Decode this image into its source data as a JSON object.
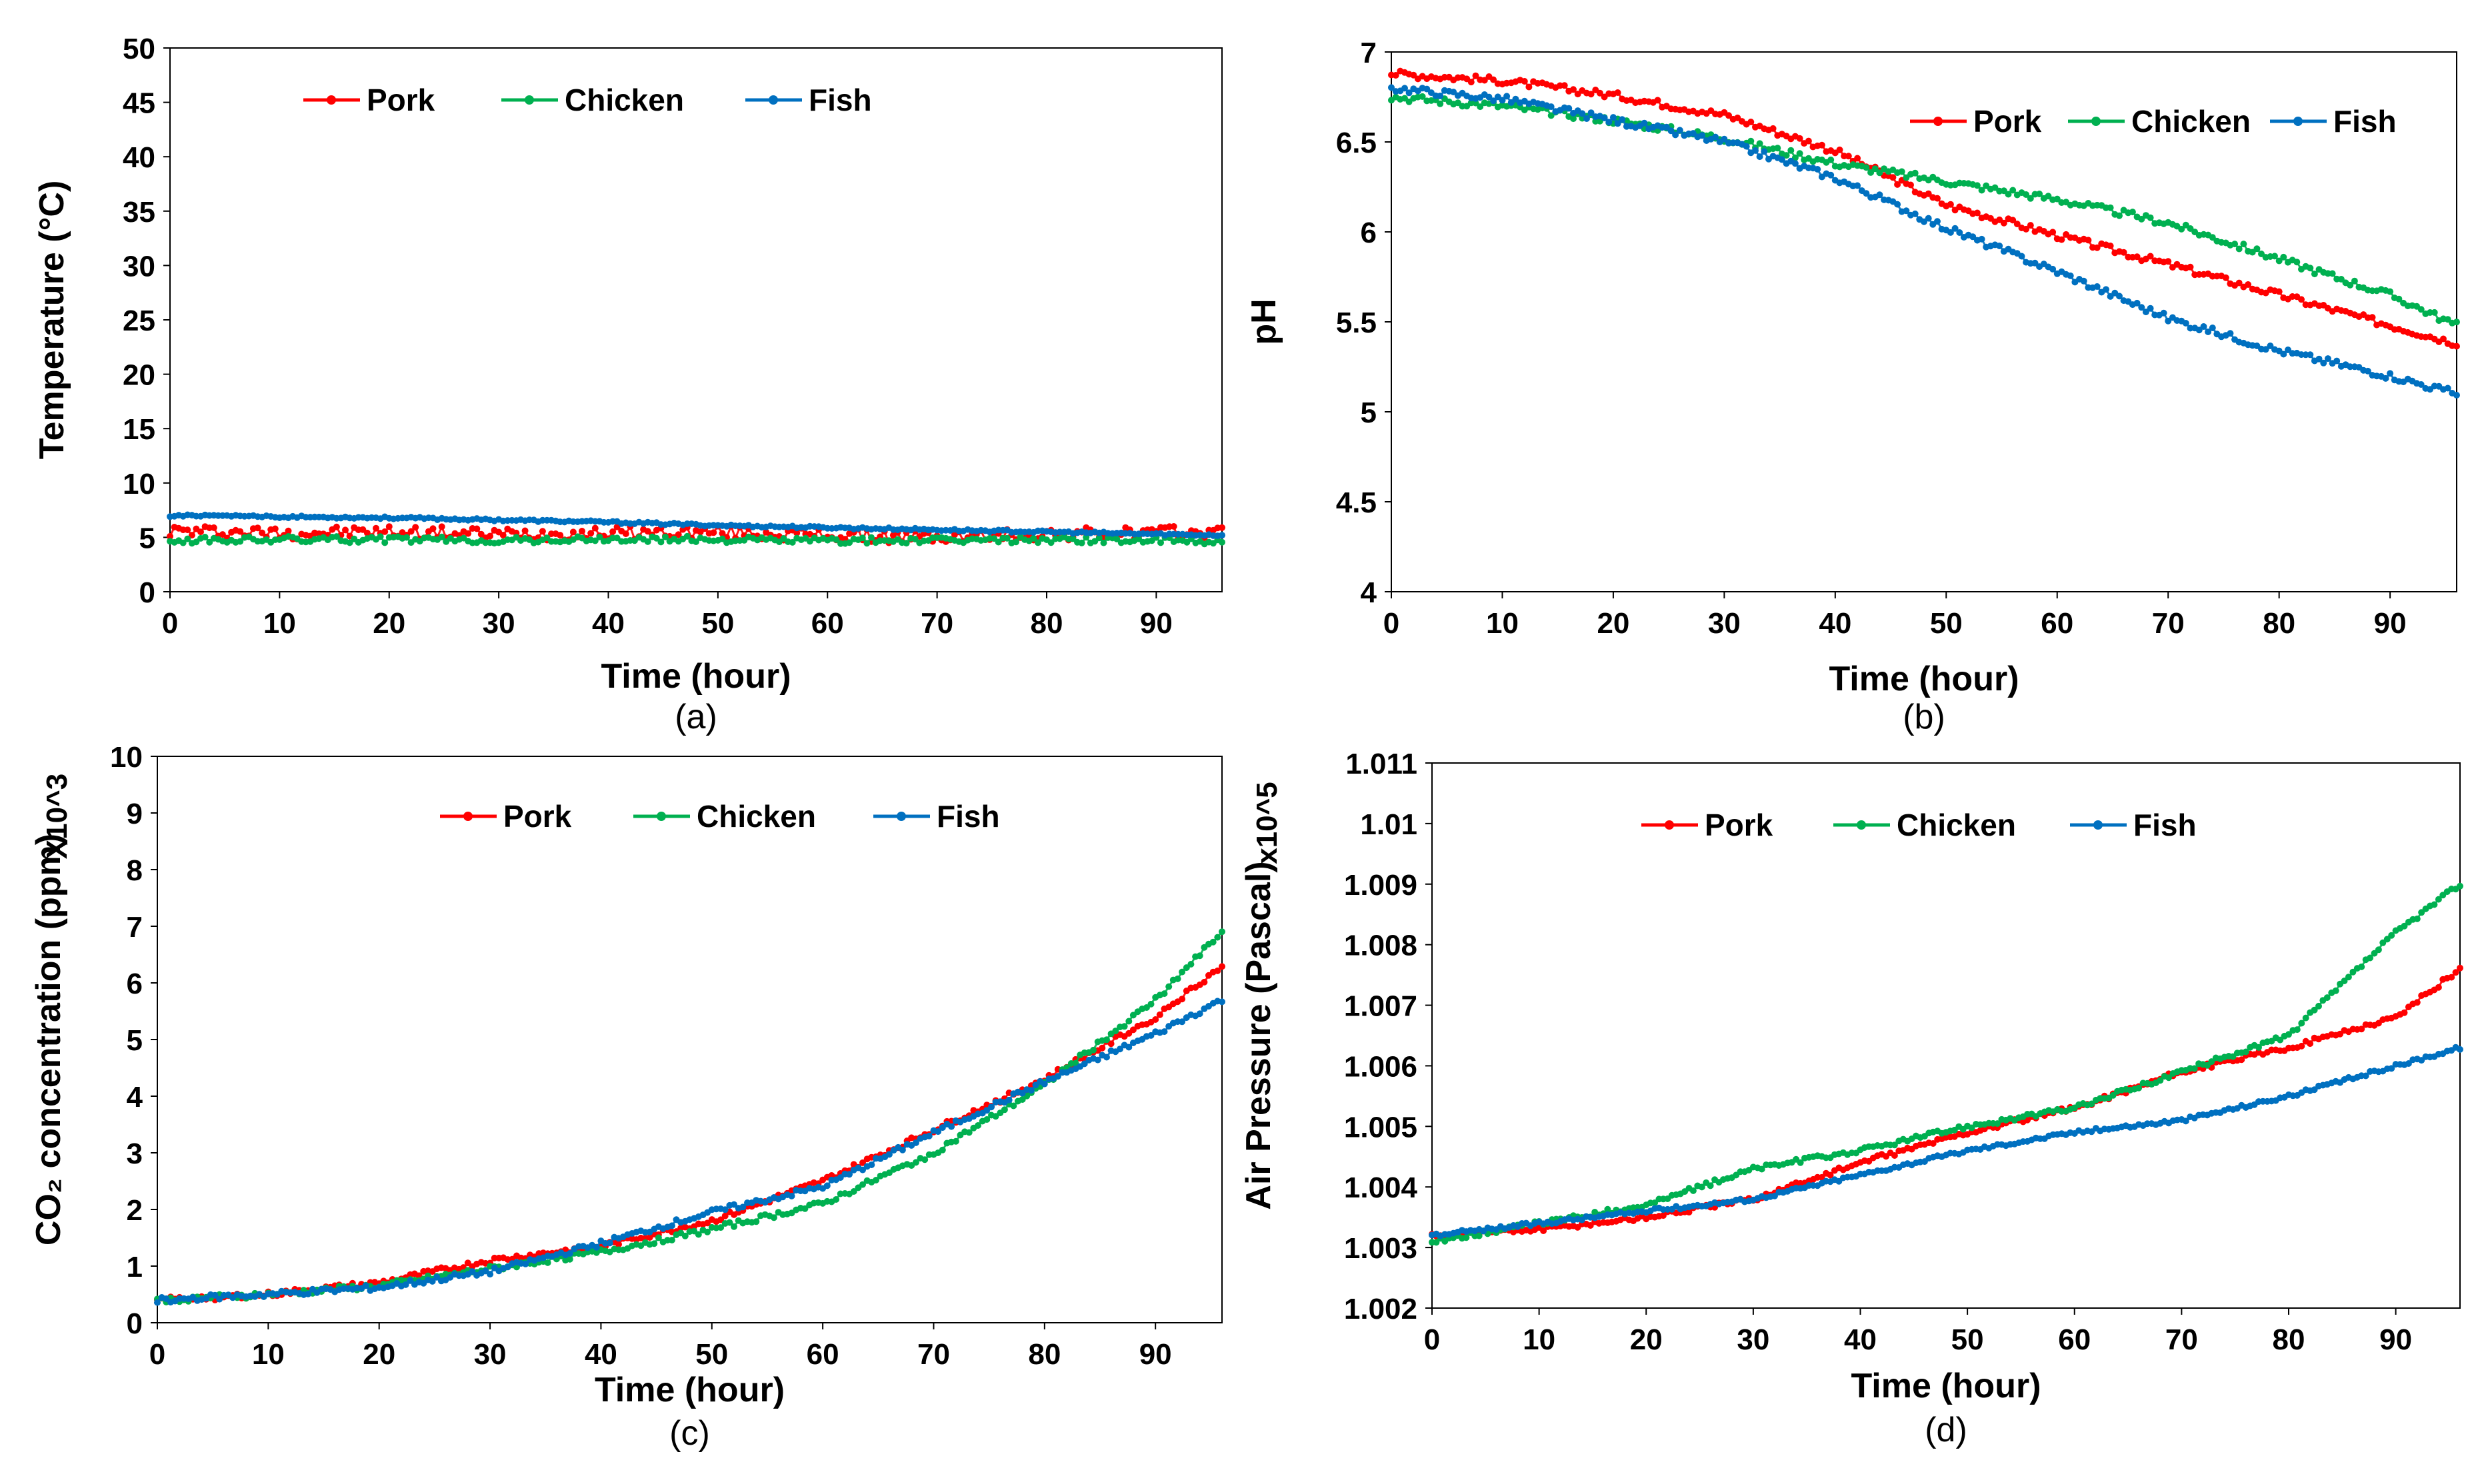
{
  "chart_data": [
    {
      "id": "a",
      "type": "line",
      "panel_label": "(a)",
      "xlabel": "Time (hour)",
      "ylabel": "Temperature (°C)",
      "multiplier": "",
      "xlim": [
        0,
        96
      ],
      "ylim": [
        0,
        50
      ],
      "xticks": [
        0,
        10,
        20,
        30,
        40,
        50,
        60,
        70,
        80,
        90
      ],
      "yticks": [
        0,
        5,
        10,
        15,
        20,
        25,
        30,
        35,
        40,
        45,
        50
      ],
      "ytick_labels": [
        "0",
        "5",
        "10",
        "15",
        "20",
        "25",
        "30",
        "35",
        "40",
        "45",
        "50"
      ],
      "legend": [
        "Pork",
        "Chicken",
        "Fish"
      ],
      "series": [
        {
          "name": "Pork",
          "color": "#ff0000",
          "x": [
            0,
            10,
            20,
            30,
            40,
            50,
            60,
            70,
            80,
            90,
            96
          ],
          "y": [
            5.6,
            5.4,
            5.5,
            5.3,
            5.4,
            5.5,
            5.2,
            5.0,
            5.3,
            5.4,
            5.5
          ],
          "noise": 0.6
        },
        {
          "name": "Chicken",
          "color": "#00b050",
          "x": [
            0,
            10,
            20,
            30,
            40,
            50,
            60,
            70,
            80,
            90,
            96
          ],
          "y": [
            4.7,
            4.8,
            4.8,
            4.7,
            4.8,
            4.8,
            4.7,
            4.7,
            4.8,
            4.7,
            4.6
          ],
          "noise": 0.3
        },
        {
          "name": "Fish",
          "color": "#0070c0",
          "x": [
            0,
            10,
            20,
            30,
            40,
            50,
            60,
            70,
            80,
            90,
            96
          ],
          "y": [
            7.0,
            6.9,
            6.8,
            6.6,
            6.4,
            6.1,
            5.9,
            5.7,
            5.5,
            5.3,
            5.2
          ],
          "noise": 0.1
        }
      ]
    },
    {
      "id": "b",
      "type": "line",
      "panel_label": "(b)",
      "xlabel": "Time (hour)",
      "ylabel": "pH",
      "multiplier": "",
      "xlim": [
        0,
        96
      ],
      "ylim": [
        4,
        7
      ],
      "xticks": [
        0,
        10,
        20,
        30,
        40,
        50,
        60,
        70,
        80,
        90
      ],
      "yticks": [
        4,
        4.5,
        5,
        5.5,
        6,
        6.5,
        7
      ],
      "ytick_labels": [
        "4",
        "4.5",
        "5",
        "5.5",
        "6",
        "6.5",
        "7"
      ],
      "legend": [
        "Pork",
        "Chicken",
        "Fish"
      ],
      "series": [
        {
          "name": "Pork",
          "color": "#ff0000",
          "x": [
            0,
            10,
            20,
            30,
            40,
            50,
            60,
            70,
            80,
            90,
            96
          ],
          "y": [
            6.88,
            6.84,
            6.76,
            6.65,
            6.45,
            6.15,
            5.98,
            5.82,
            5.65,
            5.48,
            5.38
          ],
          "noise": 0.02
        },
        {
          "name": "Chicken",
          "color": "#00b050",
          "x": [
            0,
            10,
            20,
            30,
            40,
            50,
            60,
            70,
            80,
            90,
            96
          ],
          "y": [
            6.75,
            6.7,
            6.62,
            6.52,
            6.38,
            6.28,
            6.18,
            6.05,
            5.85,
            5.65,
            5.48
          ],
          "noise": 0.02
        },
        {
          "name": "Fish",
          "color": "#0070c0",
          "x": [
            0,
            10,
            20,
            30,
            40,
            50,
            60,
            70,
            80,
            90,
            96
          ],
          "y": [
            6.8,
            6.74,
            6.62,
            6.5,
            6.3,
            6.02,
            5.78,
            5.52,
            5.34,
            5.2,
            5.1
          ],
          "noise": 0.02
        }
      ]
    },
    {
      "id": "c",
      "type": "line",
      "panel_label": "(c)",
      "xlabel": "Time (hour)",
      "ylabel": "CO₂ concentration (ppm)",
      "multiplier": "X10^3",
      "xlim": [
        0,
        96
      ],
      "ylim": [
        0,
        10
      ],
      "xticks": [
        0,
        10,
        20,
        30,
        40,
        50,
        60,
        70,
        80,
        90
      ],
      "yticks": [
        0,
        1,
        2,
        3,
        4,
        5,
        6,
        7,
        8,
        9,
        10
      ],
      "ytick_labels": [
        "0",
        "1",
        "2",
        "3",
        "4",
        "5",
        "6",
        "7",
        "8",
        "9",
        "10"
      ],
      "legend": [
        "Pork",
        "Chicken",
        "Fish"
      ],
      "series": [
        {
          "name": "Pork",
          "color": "#ff0000",
          "x": [
            0,
            10,
            20,
            30,
            40,
            50,
            60,
            70,
            80,
            90,
            96
          ],
          "y": [
            0.4,
            0.5,
            0.7,
            1.1,
            1.35,
            1.8,
            2.5,
            3.4,
            4.3,
            5.4,
            6.3
          ],
          "noise": 0.05
        },
        {
          "name": "Chicken",
          "color": "#00b050",
          "x": [
            0,
            10,
            20,
            30,
            40,
            50,
            60,
            70,
            80,
            90,
            96
          ],
          "y": [
            0.4,
            0.5,
            0.65,
            0.95,
            1.25,
            1.65,
            2.1,
            3.0,
            4.2,
            5.7,
            6.9
          ],
          "noise": 0.05
        },
        {
          "name": "Fish",
          "color": "#0070c0",
          "x": [
            0,
            10,
            20,
            30,
            40,
            50,
            60,
            70,
            80,
            90,
            96
          ],
          "y": [
            0.4,
            0.5,
            0.62,
            0.9,
            1.4,
            1.95,
            2.4,
            3.35,
            4.25,
            5.1,
            5.7
          ],
          "noise": 0.05
        }
      ]
    },
    {
      "id": "d",
      "type": "line",
      "panel_label": "(d)",
      "xlabel": "Time (hour)",
      "ylabel": "Air Pressure (Pascal)",
      "multiplier": "x10^5",
      "xlim": [
        0,
        96
      ],
      "ylim": [
        1.002,
        1.011
      ],
      "xticks": [
        0,
        10,
        20,
        30,
        40,
        50,
        60,
        70,
        80,
        90
      ],
      "yticks": [
        1.002,
        1.003,
        1.004,
        1.005,
        1.006,
        1.007,
        1.008,
        1.009,
        1.01,
        1.011
      ],
      "ytick_labels": [
        "1.002",
        "1.003",
        "1.004",
        "1.005",
        "1.006",
        "1.007",
        "1.008",
        "1.009",
        "1.01",
        "1.011"
      ],
      "legend": [
        "Pork",
        "Chicken",
        "Fish"
      ],
      "series": [
        {
          "name": "Pork",
          "color": "#ff0000",
          "x": [
            0,
            10,
            20,
            30,
            40,
            50,
            60,
            70,
            80,
            90,
            96
          ],
          "y": [
            1.0032,
            1.0033,
            1.0035,
            1.0038,
            1.0044,
            1.0049,
            1.0053,
            1.0059,
            1.0063,
            1.0068,
            1.0076
          ],
          "noise": 4e-05
        },
        {
          "name": "Chicken",
          "color": "#00b050",
          "x": [
            0,
            10,
            20,
            30,
            40,
            50,
            60,
            70,
            80,
            90,
            96
          ],
          "y": [
            1.0031,
            1.0034,
            1.0037,
            1.0043,
            1.0046,
            1.005,
            1.0053,
            1.0059,
            1.0065,
            1.0082,
            1.009
          ],
          "noise": 4e-05
        },
        {
          "name": "Fish",
          "color": "#0070c0",
          "x": [
            0,
            10,
            20,
            30,
            40,
            50,
            60,
            70,
            80,
            90,
            96
          ],
          "y": [
            1.0032,
            1.0034,
            1.0036,
            1.0038,
            1.0042,
            1.0046,
            1.0049,
            1.0051,
            1.0055,
            1.006,
            1.0063
          ],
          "noise": 3e-05
        }
      ]
    }
  ]
}
